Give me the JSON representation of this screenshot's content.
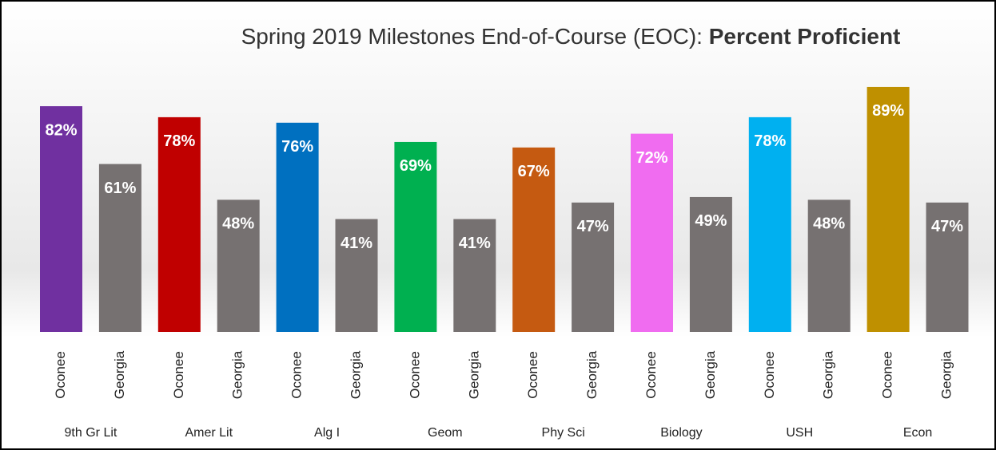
{
  "chart_data": {
    "type": "bar",
    "title": "Spring 2019 Milestones End-of-Course (EOC):",
    "title_bold": "Percent Proficient",
    "categories": [
      "9th Gr Lit",
      "Amer Lit",
      "Alg I",
      "Geom",
      "Phy Sci",
      "Biology",
      "USH",
      "Econ"
    ],
    "series": [
      {
        "name": "Oconee",
        "colors": [
          "#7030a0",
          "#c00000",
          "#0070c0",
          "#00b050",
          "#c55a11",
          "#f06cf0",
          "#00b0f0",
          "#bf9000"
        ],
        "values": [
          82,
          78,
          76,
          69,
          67,
          72,
          78,
          89
        ],
        "value_labels": [
          "82%",
          "78%",
          "76%",
          "69%",
          "67%",
          "72%",
          "78%",
          "89%"
        ]
      },
      {
        "name": "Georgia",
        "color": "#767171",
        "values": [
          61,
          48,
          41,
          41,
          47,
          49,
          48,
          47
        ],
        "value_labels": [
          "61%",
          "48%",
          "41%",
          "41%",
          "47%",
          "49%",
          "48%",
          "47%"
        ]
      }
    ]
  }
}
